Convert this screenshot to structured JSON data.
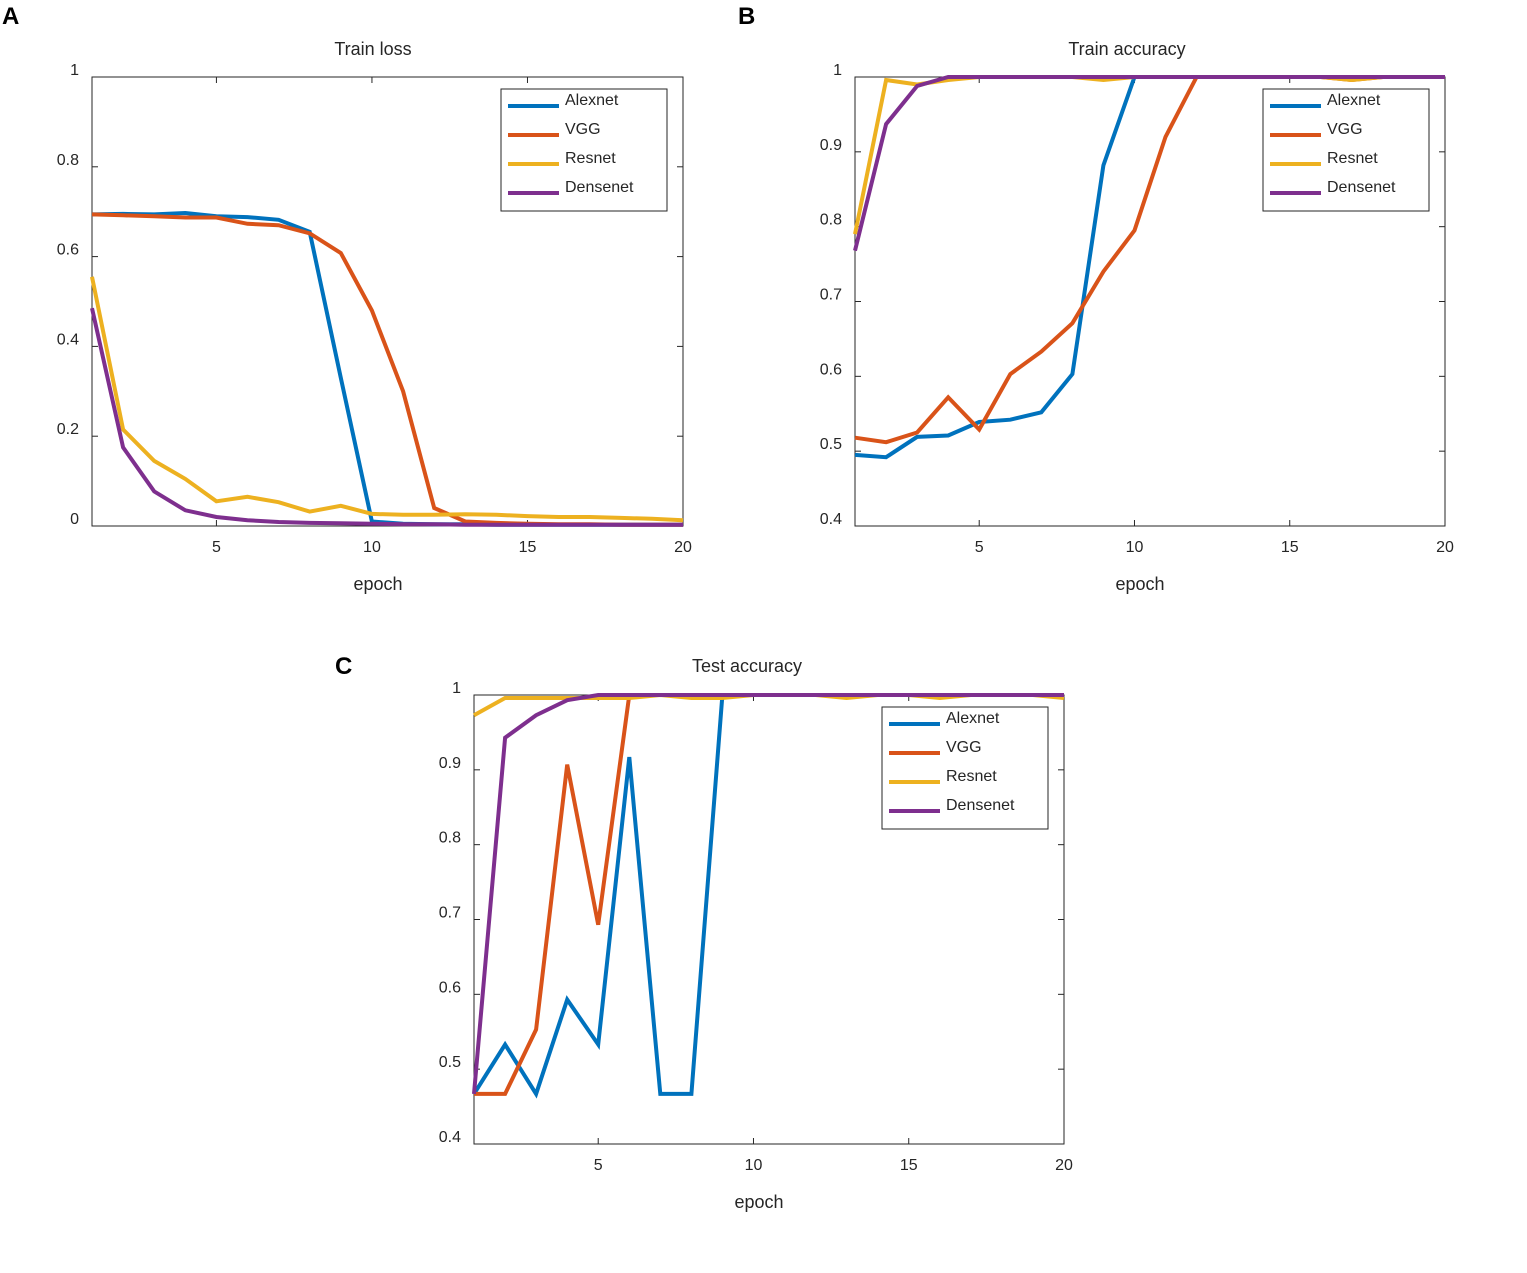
{
  "figure": {
    "colors": {
      "Alexnet": "#0072BD",
      "VGG": "#D95319",
      "Resnet": "#EDB120",
      "Densenet": "#7E2F8E"
    }
  },
  "chart_data": [
    {
      "panel": "A",
      "type": "line",
      "title": "Train loss",
      "xlabel": "epoch",
      "ylabel": "",
      "xlim": [
        1,
        20
      ],
      "ylim": [
        0,
        1
      ],
      "xticks": [
        5,
        10,
        15,
        20
      ],
      "yticks": [
        0,
        0.2,
        0.4,
        0.6,
        0.8,
        1
      ],
      "ytick_labels": [
        "0",
        "0.2",
        "0.4",
        "0.6",
        "0.8",
        "1"
      ],
      "legend_position": "top-right",
      "x": [
        1,
        2,
        3,
        4,
        5,
        6,
        7,
        8,
        9,
        10,
        11,
        12,
        13,
        14,
        15,
        16,
        17,
        18,
        19,
        20
      ],
      "series": [
        {
          "name": "Alexnet",
          "values": [
            0.694,
            0.695,
            0.694,
            0.697,
            0.69,
            0.688,
            0.682,
            0.655,
            0.33,
            0.01,
            0.005,
            0.004,
            0.004,
            0.003,
            0.003,
            0.003,
            0.003,
            0.003,
            0.003,
            0.003
          ]
        },
        {
          "name": "VGG",
          "values": [
            0.694,
            0.692,
            0.69,
            0.687,
            0.687,
            0.673,
            0.67,
            0.652,
            0.608,
            0.48,
            0.3,
            0.04,
            0.01,
            0.007,
            0.005,
            0.004,
            0.004,
            0.003,
            0.003,
            0.003
          ]
        },
        {
          "name": "Resnet",
          "values": [
            0.555,
            0.215,
            0.145,
            0.105,
            0.055,
            0.065,
            0.053,
            0.032,
            0.045,
            0.027,
            0.025,
            0.025,
            0.026,
            0.025,
            0.022,
            0.02,
            0.02,
            0.018,
            0.016,
            0.013
          ]
        },
        {
          "name": "Densenet",
          "values": [
            0.485,
            0.175,
            0.077,
            0.035,
            0.02,
            0.013,
            0.009,
            0.007,
            0.006,
            0.005,
            0.004,
            0.004,
            0.003,
            0.003,
            0.003,
            0.003,
            0.003,
            0.003,
            0.003,
            0.003
          ]
        }
      ]
    },
    {
      "panel": "B",
      "type": "line",
      "title": "Train accuracy",
      "xlabel": "epoch",
      "ylabel": "",
      "xlim": [
        1,
        20
      ],
      "ylim": [
        0.4,
        1
      ],
      "xticks": [
        5,
        10,
        15,
        20
      ],
      "yticks": [
        0.4,
        0.5,
        0.6,
        0.7,
        0.8,
        0.9,
        1
      ],
      "ytick_labels": [
        "0.4",
        "0.5",
        "0.6",
        "0.7",
        "0.8",
        "0.9",
        "1"
      ],
      "legend_position": "top-right",
      "x": [
        1,
        2,
        3,
        4,
        5,
        6,
        7,
        8,
        9,
        10,
        11,
        12,
        13,
        14,
        15,
        16,
        17,
        18,
        19,
        20
      ],
      "series": [
        {
          "name": "Alexnet",
          "values": [
            0.495,
            0.492,
            0.519,
            0.521,
            0.539,
            0.542,
            0.552,
            0.603,
            0.882,
            1.0,
            1.0,
            1.0,
            1.0,
            1.0,
            1.0,
            1.0,
            1.0,
            1.0,
            1.0,
            1.0
          ]
        },
        {
          "name": "VGG",
          "values": [
            0.518,
            0.512,
            0.525,
            0.572,
            0.529,
            0.603,
            0.633,
            0.671,
            0.74,
            0.795,
            0.92,
            1.0,
            1.0,
            1.0,
            1.0,
            1.0,
            0.996,
            1.0,
            1.0,
            1.0
          ]
        },
        {
          "name": "Resnet",
          "values": [
            0.79,
            0.996,
            0.99,
            0.996,
            1.0,
            1.0,
            1.0,
            1.0,
            0.996,
            1.0,
            1.0,
            1.0,
            1.0,
            1.0,
            1.0,
            1.0,
            0.996,
            1.0,
            1.0,
            1.0
          ]
        },
        {
          "name": "Densenet",
          "values": [
            0.768,
            0.937,
            0.988,
            1.0,
            1.0,
            1.0,
            1.0,
            1.0,
            1.0,
            1.0,
            1.0,
            1.0,
            1.0,
            1.0,
            1.0,
            1.0,
            1.0,
            1.0,
            1.0,
            1.0
          ]
        }
      ]
    },
    {
      "panel": "C",
      "type": "line",
      "title": "Test accuracy",
      "xlabel": "epoch",
      "ylabel": "",
      "xlim": [
        1,
        20
      ],
      "ylim": [
        0.4,
        1
      ],
      "xticks": [
        5,
        10,
        15,
        20
      ],
      "yticks": [
        0.4,
        0.5,
        0.6,
        0.7,
        0.8,
        0.9,
        1
      ],
      "ytick_labels": [
        "0.4",
        "0.5",
        "0.6",
        "0.7",
        "0.8",
        "0.9",
        "1"
      ],
      "legend_position": "top-right",
      "x": [
        1,
        2,
        3,
        4,
        5,
        6,
        7,
        8,
        9,
        10,
        11,
        12,
        13,
        14,
        15,
        16,
        17,
        18,
        19,
        20
      ],
      "series": [
        {
          "name": "Alexnet",
          "values": [
            0.467,
            0.533,
            0.467,
            0.593,
            0.533,
            0.917,
            0.467,
            0.467,
            1.0,
            1.0,
            1.0,
            1.0,
            1.0,
            1.0,
            1.0,
            1.0,
            1.0,
            1.0,
            1.0,
            1.0
          ]
        },
        {
          "name": "VGG",
          "values": [
            0.467,
            0.467,
            0.553,
            0.907,
            0.693,
            1.0,
            1.0,
            1.0,
            1.0,
            1.0,
            1.0,
            1.0,
            1.0,
            1.0,
            1.0,
            1.0,
            1.0,
            1.0,
            1.0,
            1.0
          ]
        },
        {
          "name": "Resnet",
          "values": [
            0.973,
            0.996,
            0.996,
            0.996,
            0.996,
            0.996,
            1.0,
            0.996,
            0.996,
            1.0,
            1.0,
            1.0,
            0.996,
            1.0,
            1.0,
            0.996,
            1.0,
            1.0,
            1.0,
            0.996
          ]
        },
        {
          "name": "Densenet",
          "values": [
            0.467,
            0.943,
            0.973,
            0.993,
            1.0,
            1.0,
            1.0,
            1.0,
            1.0,
            1.0,
            1.0,
            1.0,
            1.0,
            1.0,
            1.0,
            1.0,
            1.0,
            1.0,
            1.0,
            1.0
          ]
        }
      ]
    }
  ]
}
